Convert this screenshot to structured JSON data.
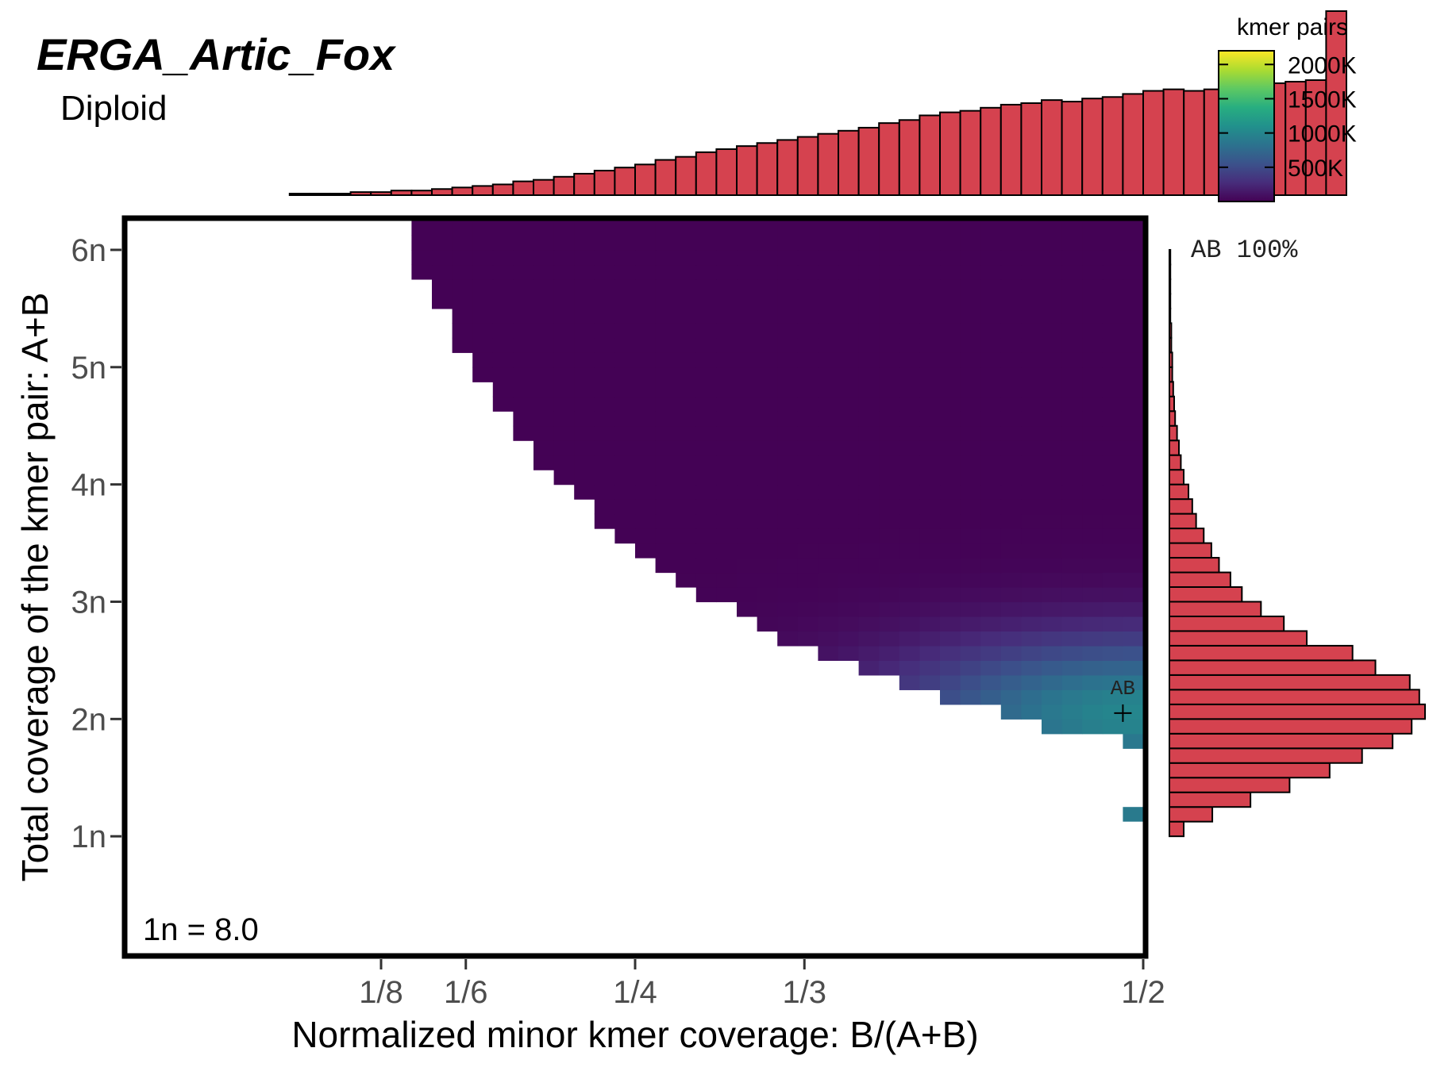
{
  "chart_data": {
    "type": "heatmap",
    "title": "ERGA_Artic_Fox",
    "subtitle": "Diploid",
    "xlabel": "Normalized minor kmer coverage: B/(A+B)",
    "ylabel": "Total coverage of the kmer pair: A+B",
    "x_ticks": [
      {
        "value": 0.125,
        "label": "1/8"
      },
      {
        "value": 0.1667,
        "label": "1/6"
      },
      {
        "value": 0.25,
        "label": "1/4"
      },
      {
        "value": 0.3333,
        "label": "1/3"
      },
      {
        "value": 0.5,
        "label": "1/2"
      }
    ],
    "y_ticks": [
      {
        "value": 1,
        "label": "1n"
      },
      {
        "value": 2,
        "label": "2n"
      },
      {
        "value": 3,
        "label": "3n"
      },
      {
        "value": 4,
        "label": "4n"
      },
      {
        "value": 5,
        "label": "5n"
      },
      {
        "value": 6,
        "label": "6n"
      }
    ],
    "xlim": [
      0.0,
      0.5
    ],
    "ylim": [
      0.0,
      6.25
    ],
    "legend": {
      "title": "kmer pairs",
      "placement": "top-right",
      "ticks": [
        {
          "value": 2000,
          "label": "2000K"
        },
        {
          "value": 1500,
          "label": "1500K"
        },
        {
          "value": 1000,
          "label": "1000K"
        },
        {
          "value": 500,
          "label": "500K"
        }
      ],
      "max": 2200,
      "colormap": "viridis"
    },
    "annotations": {
      "coverage_label": "1n = 8.0",
      "peak_label": "AB",
      "peak_x": 0.49,
      "peak_y": 2.05,
      "side_label": "AB 100%"
    },
    "top_histogram": {
      "x_start": 0.08,
      "bin_width": 0.01,
      "values": [
        1,
        1,
        1,
        2,
        2,
        3,
        3,
        4,
        5,
        6,
        7,
        9,
        10,
        12,
        14,
        16,
        18,
        20,
        23,
        25,
        28,
        30,
        32,
        34,
        36,
        38,
        40,
        42,
        44,
        47,
        49,
        52,
        54,
        55,
        57,
        59,
        60,
        62,
        61,
        63,
        64,
        66,
        68,
        69,
        68,
        69,
        70,
        72,
        73,
        74,
        75,
        120
      ]
    },
    "right_histogram": {
      "y_start": 1.0,
      "bin_height": 0.125,
      "values": [
        1.5,
        4.5,
        8.5,
        12.6,
        16.8,
        20.2,
        23.4,
        25.4,
        26.8,
        26.2,
        25.2,
        21.6,
        19.2,
        14.4,
        12.0,
        9.6,
        7.6,
        6.4,
        5.2,
        4.4,
        3.6,
        2.8,
        2.4,
        2.0,
        1.5,
        1.2,
        1.0,
        0.8,
        0.6,
        0.5,
        0.4,
        0.3,
        0.3,
        0.2,
        0.2,
        0.1,
        0.1,
        0.1,
        0.1,
        0.1
      ]
    }
  }
}
